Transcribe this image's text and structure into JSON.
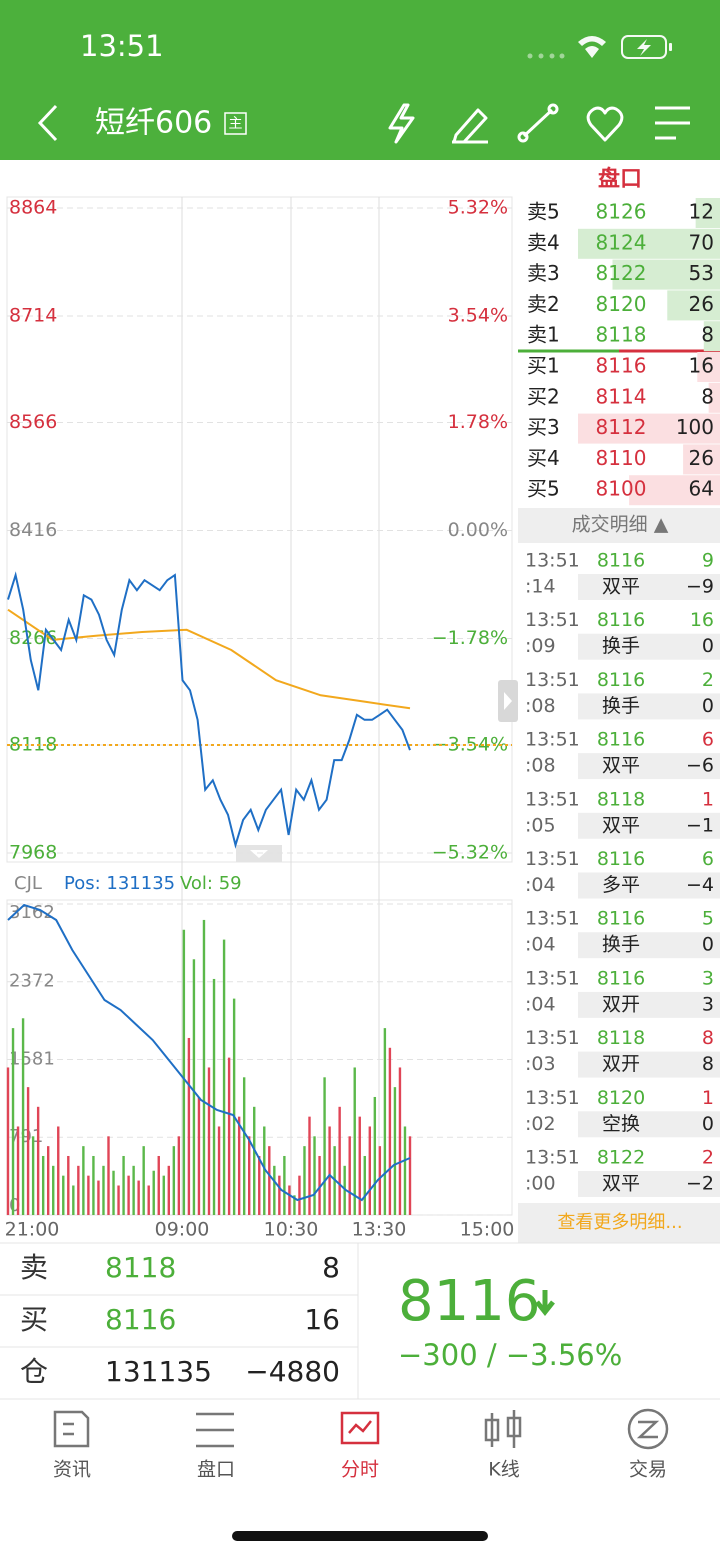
{
  "status_bar": {
    "time": "13:51"
  },
  "header": {
    "title": "短纤606",
    "badge": "主"
  },
  "order_book_title": "盘口",
  "price_chart": {
    "ylim": [
      7968,
      8864
    ],
    "yticks": [
      8864,
      8714,
      8566,
      8416,
      8266,
      8118,
      7968
    ],
    "percent_labels": [
      "5.32%",
      "3.54%",
      "1.78%",
      "0.00%",
      "−1.78%",
      "−3.54%",
      "−5.32%"
    ],
    "up_color": "#d5303e",
    "flat_color": "#888888",
    "down_color": "#4caf3a",
    "price_line": {
      "color": "#1f6fc5",
      "values": [
        8320,
        8354,
        8306,
        8236,
        8194,
        8278,
        8264,
        8250,
        8292,
        8264,
        8326,
        8320,
        8299,
        8264,
        8243,
        8306,
        8347,
        8333,
        8347,
        8340,
        8333,
        8347,
        8354,
        8208,
        8194,
        8153,
        8056,
        8069,
        8042,
        8021,
        7979,
        8014,
        8028,
        8000,
        8028,
        8042,
        8056,
        7993,
        8056,
        8042,
        8069,
        8028,
        8042,
        8097,
        8097,
        8125,
        8160,
        8153,
        8153,
        8160,
        8167,
        8153,
        8139,
        8111
      ]
    },
    "avg_line": {
      "color": "#f2a81d",
      "values": [
        8306,
        8264,
        8270,
        8275,
        8278,
        8250,
        8208,
        8187,
        8178,
        8169
      ]
    },
    "reference": 8118,
    "reference_color": "#f2a81d"
  },
  "volume_chart": {
    "name": "CJL",
    "pos": "Pos: 131135",
    "vol": "Vol: 59",
    "ylim": [
      0,
      3162
    ],
    "yticks": [
      3162,
      2372,
      1581,
      791,
      0
    ],
    "red_bars": {
      "color": "#e04556",
      "values": [
        1500,
        900,
        1300,
        1100,
        700,
        900,
        600,
        500,
        400,
        350,
        800,
        300,
        400,
        350,
        300,
        600,
        500,
        800,
        1800,
        1200,
        1500,
        900,
        1600,
        1000,
        800,
        600,
        700,
        400,
        300,
        400,
        1000,
        600,
        900,
        1100,
        800,
        1000,
        900,
        700,
        1700,
        1500,
        800
      ]
    },
    "green_bars": {
      "color": "#5bb84a",
      "values": [
        1900,
        2000,
        800,
        600,
        500,
        400,
        300,
        700,
        600,
        500,
        450,
        600,
        500,
        700,
        450,
        400,
        700,
        2900,
        2600,
        3000,
        2400,
        2800,
        2200,
        1400,
        1100,
        900,
        500,
        600,
        200,
        700,
        800,
        1400,
        700,
        500,
        1500,
        600,
        1200,
        1900,
        1300,
        900
      ]
    },
    "position_line": {
      "color": "#1f6fc5",
      "values": [
        2999,
        3152,
        3101,
        2999,
        2694,
        2440,
        2186,
        2084,
        1932,
        1779,
        1576,
        1373,
        1169,
        1068,
        1017,
        763,
        458,
        254,
        153,
        203,
        407,
        254,
        153,
        356,
        508,
        580
      ]
    }
  },
  "time_labels": [
    "21:00",
    "09:00",
    "10:30",
    "13:30",
    "15:00"
  ],
  "order_book": {
    "asks": [
      {
        "label": "卖5",
        "price": 8126,
        "volume": 12
      },
      {
        "label": "卖4",
        "price": 8124,
        "volume": 70
      },
      {
        "label": "卖3",
        "price": 8122,
        "volume": 53
      },
      {
        "label": "卖2",
        "price": 8120,
        "volume": 26
      },
      {
        "label": "卖1",
        "price": 8118,
        "volume": 8
      }
    ],
    "bids": [
      {
        "label": "买1",
        "price": 8116,
        "volume": 16
      },
      {
        "label": "买2",
        "price": 8114,
        "volume": 8
      },
      {
        "label": "买3",
        "price": 8112,
        "volume": 100
      },
      {
        "label": "买4",
        "price": 8110,
        "volume": 26
      },
      {
        "label": "买5",
        "price": 8100,
        "volume": 64
      }
    ]
  },
  "trade_detail": {
    "title": "成交明细 ▲",
    "rows": [
      {
        "time": "13:51",
        "sec": ":14",
        "price": 8116,
        "volume": 9,
        "volume_color": "#4caf3a",
        "type": "双平",
        "change": "−9"
      },
      {
        "time": "13:51",
        "sec": ":09",
        "price": 8116,
        "volume": 16,
        "volume_color": "#4caf3a",
        "type": "换手",
        "change": "0"
      },
      {
        "time": "13:51",
        "sec": ":08",
        "price": 8116,
        "volume": 2,
        "volume_color": "#4caf3a",
        "type": "换手",
        "change": "0"
      },
      {
        "time": "13:51",
        "sec": ":08",
        "price": 8116,
        "volume": 6,
        "volume_color": "#d5303e",
        "type": "双平",
        "change": "−6"
      },
      {
        "time": "13:51",
        "sec": ":05",
        "price": 8118,
        "volume": 1,
        "volume_color": "#d5303e",
        "type": "双平",
        "change": "−1"
      },
      {
        "time": "13:51",
        "sec": ":04",
        "price": 8116,
        "volume": 6,
        "volume_color": "#4caf3a",
        "type": "多平",
        "change": "−4"
      },
      {
        "time": "13:51",
        "sec": ":04",
        "price": 8116,
        "volume": 5,
        "volume_color": "#4caf3a",
        "type": "换手",
        "change": "0"
      },
      {
        "time": "13:51",
        "sec": ":04",
        "price": 8116,
        "volume": 3,
        "volume_color": "#4caf3a",
        "type": "双开",
        "change": "3"
      },
      {
        "time": "13:51",
        "sec": ":03",
        "price": 8118,
        "volume": 8,
        "volume_color": "#d5303e",
        "type": "双开",
        "change": "8"
      },
      {
        "time": "13:51",
        "sec": ":02",
        "price": 8120,
        "volume": 1,
        "volume_color": "#d5303e",
        "type": "空换",
        "change": "0"
      },
      {
        "time": "13:51",
        "sec": ":00",
        "price": 8122,
        "volume": 2,
        "volume_color": "#d5303e",
        "type": "双平",
        "change": "−2"
      }
    ],
    "more": "查看更多明细..."
  },
  "quote_table": {
    "rows": [
      [
        "卖",
        8118,
        8
      ],
      [
        "买",
        8116,
        16
      ],
      [
        "仓",
        131135,
        "−4880"
      ]
    ]
  },
  "last": {
    "price": 8116,
    "change_text": "−300 / −3.56%"
  },
  "tabs": {
    "items": [
      "资讯",
      "盘口",
      "分时",
      "K线",
      "交易"
    ],
    "active": 2
  }
}
